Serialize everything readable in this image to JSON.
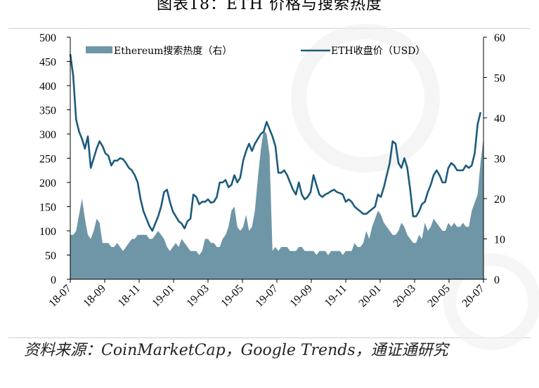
{
  "title": "图表18：ETH 价格与搜索热度",
  "source": "资料来源：CoinMarketCap，Google Trends，通证通研究",
  "colors": {
    "price_line": "#1c5b7c",
    "search_area": "#6e96a6",
    "axis": "#000000"
  },
  "chart_data": {
    "type": "line",
    "x_ticks": [
      "18-07",
      "18-09",
      "18-11",
      "19-01",
      "19-03",
      "19-05",
      "19-07",
      "19-09",
      "19-11",
      "20-01",
      "20-03",
      "20-05",
      "20-07"
    ],
    "y_left": {
      "lim": [
        0,
        500
      ],
      "ticks": [
        "0",
        "50",
        "100",
        "150",
        "200",
        "250",
        "300",
        "350",
        "400",
        "450",
        "500"
      ]
    },
    "y_right": {
      "lim": [
        0,
        60
      ],
      "ticks": [
        "0",
        "10",
        "20",
        "30",
        "40",
        "50",
        "60"
      ]
    },
    "legend_position": "top",
    "series": [
      {
        "name": "Ethereum搜索热度（右）",
        "kind": "area",
        "axis": "right",
        "values": [
          11,
          11,
          12,
          16,
          20,
          15,
          11,
          10,
          12,
          15,
          14,
          9,
          9,
          9,
          8,
          8,
          9,
          8,
          7,
          8,
          9,
          10,
          10,
          11,
          11,
          11,
          11,
          10,
          10,
          11,
          12,
          11,
          10,
          8,
          7,
          8,
          9,
          8,
          10,
          9,
          8,
          7,
          7,
          7,
          6,
          7,
          10,
          10,
          9,
          9,
          8,
          8,
          10,
          11,
          13,
          17,
          18,
          13,
          12,
          13,
          16,
          12,
          13,
          17,
          25,
          32,
          37,
          36,
          31,
          7,
          8,
          7,
          8,
          8,
          8,
          7,
          7,
          7,
          8,
          8,
          7,
          7,
          7,
          7,
          6,
          7,
          7,
          7,
          6,
          7,
          7,
          7,
          7,
          6,
          7,
          7,
          7,
          9,
          8,
          8,
          9,
          12,
          10,
          13,
          15,
          17,
          16,
          14,
          13,
          12,
          11,
          11,
          12,
          14,
          13,
          11,
          10,
          9,
          9,
          11,
          10,
          14,
          12,
          13,
          15,
          14,
          13,
          12,
          12,
          14,
          13,
          14,
          13,
          13,
          14,
          13,
          13,
          17,
          19,
          21,
          29,
          35
        ]
      },
      {
        "name": "ETH收盘价（USD）",
        "kind": "line",
        "axis": "left",
        "values": [
          465,
          420,
          330,
          305,
          290,
          270,
          295,
          230,
          250,
          270,
          285,
          275,
          260,
          255,
          235,
          245,
          245,
          250,
          248,
          240,
          230,
          225,
          215,
          200,
          165,
          140,
          125,
          110,
          100,
          115,
          130,
          150,
          180,
          185,
          160,
          140,
          130,
          120,
          115,
          105,
          120,
          125,
          175,
          170,
          155,
          160,
          160,
          165,
          158,
          160,
          170,
          200,
          200,
          205,
          190,
          195,
          215,
          200,
          210,
          245,
          265,
          280,
          265,
          280,
          290,
          300,
          305,
          325,
          310,
          295,
          275,
          220,
          220,
          225,
          215,
          200,
          185,
          175,
          200,
          175,
          165,
          170,
          180,
          215,
          195,
          175,
          170,
          175,
          178,
          182,
          185,
          180,
          178,
          175,
          160,
          165,
          160,
          150,
          145,
          140,
          135,
          135,
          140,
          145,
          150,
          175,
          170,
          190,
          215,
          240,
          285,
          280,
          240,
          230,
          250,
          230,
          185,
          130,
          130,
          140,
          155,
          160,
          180,
          195,
          215,
          225,
          215,
          200,
          200,
          230,
          240,
          235,
          225,
          225,
          225,
          235,
          230,
          235,
          260,
          320,
          345
        ]
      }
    ]
  }
}
